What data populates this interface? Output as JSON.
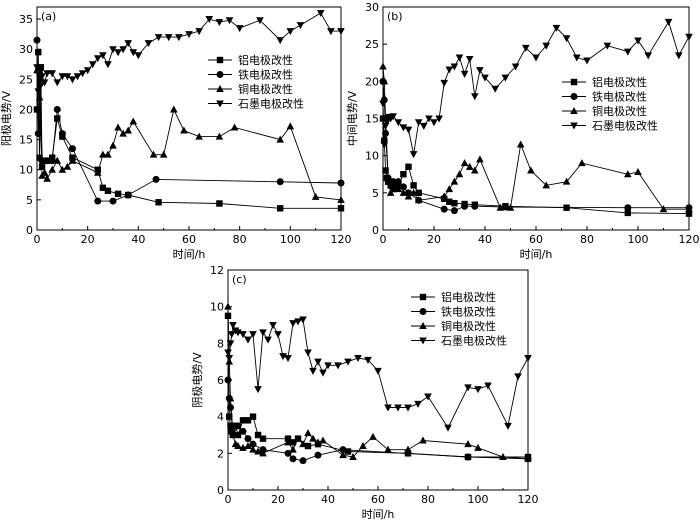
{
  "figure": {
    "legend_labels": [
      "铝电极改性",
      "铁电极改性",
      "铜电极改性",
      "石墨电极改性"
    ],
    "series_markers": [
      "square",
      "circle",
      "triangle-up",
      "triangle-down"
    ]
  },
  "chart_data": [
    {
      "type": "line",
      "panel_label": "(a)",
      "xlabel": "时间/h",
      "ylabel": "阳极电势/V",
      "xlim": [
        0,
        120
      ],
      "ylim": [
        0,
        37
      ],
      "xticks": [
        0,
        20,
        40,
        60,
        80,
        100,
        120
      ],
      "yticks": [
        0,
        5,
        10,
        15,
        20,
        25,
        30,
        35
      ],
      "legend_position": "center-right",
      "series": [
        {
          "name": "铝电极改性",
          "marker": "square",
          "x": [
            0,
            0.5,
            1,
            1.5,
            2,
            3,
            4,
            6,
            8,
            10,
            14,
            24,
            26,
            28,
            32,
            36,
            48,
            72,
            96,
            120
          ],
          "y": [
            20,
            29.5,
            12,
            27,
            10.5,
            11.5,
            11.5,
            12,
            18.5,
            15.5,
            12,
            10,
            7,
            6.5,
            6,
            5.8,
            4.6,
            4.4,
            3.6,
            3.6
          ]
        },
        {
          "name": "铁电极改性",
          "marker": "circle",
          "x": [
            0,
            0.5,
            1,
            2,
            4,
            6,
            8,
            10,
            14,
            24,
            30,
            36,
            47,
            96,
            120
          ],
          "y": [
            31.5,
            16,
            26,
            11.5,
            11.5,
            11.5,
            20,
            16,
            13.5,
            4.8,
            4.8,
            5.8,
            8.4,
            8,
            7.8
          ]
        },
        {
          "name": "铜电极改性",
          "marker": "triangle-up",
          "x": [
            0,
            0.5,
            1,
            2,
            3,
            4,
            6,
            8,
            10,
            12,
            14,
            24,
            26,
            28,
            30,
            32,
            34,
            36,
            38,
            46,
            50,
            54,
            58,
            64,
            72,
            78,
            96,
            100,
            110,
            120
          ],
          "y": [
            26.5,
            27,
            22,
            9,
            9.5,
            8.5,
            10,
            11.5,
            10,
            10.5,
            11.5,
            9.5,
            12.5,
            12.5,
            14,
            17,
            16,
            16.5,
            18,
            12.5,
            12.5,
            20,
            16.5,
            15.5,
            15.5,
            17,
            15,
            17.2,
            5.5,
            5
          ]
        },
        {
          "name": "石墨电极改性",
          "marker": "triangle-down",
          "x": [
            0,
            0.5,
            1,
            1.5,
            2,
            3,
            4,
            6,
            8,
            10,
            12,
            14,
            16,
            18,
            20,
            22,
            24,
            26,
            28,
            30,
            32,
            34,
            36,
            38,
            40,
            44,
            48,
            52,
            56,
            60,
            64,
            68,
            72,
            76,
            80,
            88,
            96,
            100,
            104,
            112,
            116,
            120
          ],
          "y": [
            27,
            23,
            26,
            24,
            25.5,
            24.5,
            26,
            26,
            24.5,
            25.5,
            25.5,
            25,
            25.5,
            26,
            26.5,
            27.5,
            28.5,
            29,
            27.5,
            30,
            29.5,
            30,
            31,
            29.5,
            29,
            31,
            32,
            32,
            32,
            32.5,
            33,
            35,
            34.5,
            34.8,
            33.5,
            34.8,
            31.5,
            33,
            34,
            36,
            33,
            33
          ]
        }
      ]
    },
    {
      "type": "line",
      "panel_label": "(b)",
      "xlabel": "时间/h",
      "ylabel": "中间电势/V",
      "xlim": [
        0,
        120
      ],
      "ylim": [
        0,
        30
      ],
      "xticks": [
        0,
        20,
        40,
        60,
        80,
        100,
        120
      ],
      "yticks": [
        0,
        5,
        10,
        15,
        20,
        25,
        30
      ],
      "legend_position": "center-right",
      "series": [
        {
          "name": "铝电极改性",
          "marker": "square",
          "x": [
            0,
            0.5,
            1,
            1.5,
            2,
            3,
            4,
            6,
            8,
            10,
            12,
            14,
            24,
            26,
            28,
            32,
            36,
            48,
            72,
            96,
            120
          ],
          "y": [
            15,
            12,
            8,
            7,
            6.5,
            6,
            5.5,
            6,
            7.5,
            8.5,
            6,
            5,
            4.2,
            3.8,
            3.6,
            3.5,
            3.4,
            3.2,
            3,
            2.3,
            2.2
          ]
        },
        {
          "name": "铁电极改性",
          "marker": "circle",
          "x": [
            0,
            0.5,
            1,
            2,
            4,
            6,
            8,
            10,
            14,
            24,
            28,
            32,
            36,
            48,
            96,
            120
          ],
          "y": [
            20,
            17.5,
            13,
            7,
            6.5,
            6.5,
            5.8,
            5,
            4,
            2.8,
            2.6,
            3.2,
            3.2,
            3.1,
            3,
            3
          ]
        },
        {
          "name": "铜电极改性",
          "marker": "triangle-up",
          "x": [
            0,
            0.5,
            1,
            2,
            3,
            4,
            6,
            8,
            10,
            12,
            14,
            24,
            26,
            28,
            30,
            32,
            34,
            36,
            38,
            46,
            50,
            54,
            58,
            64,
            72,
            78,
            96,
            100,
            110,
            120
          ],
          "y": [
            22,
            20,
            15,
            7,
            5,
            6,
            5.5,
            5,
            4.5,
            5,
            4,
            4.5,
            5.5,
            6.5,
            7.5,
            9,
            8.5,
            8,
            9.5,
            3,
            3,
            11.5,
            8,
            6,
            6.5,
            9,
            7.5,
            7.8,
            2.8,
            2.8
          ]
        },
        {
          "name": "石墨电极改性",
          "marker": "triangle-down",
          "x": [
            0,
            0.5,
            1,
            1.5,
            2,
            3,
            4,
            6,
            8,
            10,
            12,
            14,
            16,
            18,
            20,
            22,
            24,
            26,
            28,
            30,
            32,
            34,
            36,
            38,
            40,
            44,
            48,
            52,
            56,
            60,
            64,
            68,
            72,
            76,
            80,
            88,
            96,
            100,
            104,
            112,
            116,
            120
          ],
          "y": [
            17,
            11.5,
            14,
            14.5,
            15.2,
            15,
            15.3,
            14.5,
            13.8,
            13.5,
            10.2,
            14.5,
            14,
            15,
            14.5,
            15,
            19.8,
            21.6,
            22,
            23.2,
            21,
            23,
            18,
            21.5,
            20.5,
            19,
            20.5,
            22,
            24.5,
            23.2,
            24.8,
            27.2,
            25.8,
            23.2,
            22.8,
            24.8,
            24,
            25.5,
            23.5,
            28,
            23.5,
            26
          ]
        }
      ]
    },
    {
      "type": "line",
      "panel_label": "(c)",
      "xlabel": "时间/h",
      "ylabel": "阴极电势/V",
      "xlim": [
        0,
        120
      ],
      "ylim": [
        0,
        12
      ],
      "xticks": [
        0,
        20,
        40,
        60,
        80,
        100,
        120
      ],
      "yticks": [
        0,
        2,
        4,
        6,
        8,
        10,
        12
      ],
      "legend_position": "top-right",
      "series": [
        {
          "name": "铝电极改性",
          "marker": "square",
          "x": [
            0,
            0.5,
            1,
            1.5,
            2,
            3,
            4,
            6,
            8,
            10,
            12,
            14,
            24,
            26,
            28,
            32,
            36,
            48,
            72,
            96,
            120
          ],
          "y": [
            9.5,
            4,
            3.5,
            3.2,
            3.5,
            3.5,
            3,
            3.8,
            3.8,
            4,
            3,
            2.8,
            2.8,
            2.6,
            2.8,
            2.4,
            2.5,
            2.1,
            2,
            1.8,
            1.8
          ]
        },
        {
          "name": "铁电极改性",
          "marker": "circle",
          "x": [
            0,
            0.5,
            1,
            2,
            4,
            6,
            8,
            10,
            14,
            24,
            26,
            30,
            36,
            46,
            96,
            120
          ],
          "y": [
            6,
            5,
            4.5,
            3,
            3.5,
            3.2,
            2.8,
            2.5,
            2.2,
            2,
            1.7,
            1.6,
            1.9,
            2.2,
            1.8,
            1.7
          ]
        },
        {
          "name": "铜电极改性",
          "marker": "triangle-up",
          "x": [
            0,
            0.5,
            1,
            2,
            3,
            4,
            6,
            8,
            10,
            12,
            14,
            24,
            26,
            28,
            30,
            32,
            34,
            36,
            38,
            46,
            50,
            54,
            58,
            64,
            72,
            78,
            96,
            100,
            110,
            120
          ],
          "y": [
            10,
            7,
            5,
            3,
            2.5,
            2.4,
            2.3,
            2.4,
            2.2,
            2.1,
            2,
            2.6,
            2.2,
            2.8,
            2.5,
            3.1,
            2.8,
            2.6,
            2.7,
            1.9,
            1.8,
            2.4,
            2.9,
            2.2,
            2.2,
            2.7,
            2.5,
            2.3,
            1.8,
            1.7
          ]
        },
        {
          "name": "石墨电极改性",
          "marker": "triangle-down",
          "x": [
            0,
            0.5,
            1,
            1.5,
            2,
            3,
            4,
            6,
            8,
            10,
            12,
            14,
            16,
            18,
            20,
            22,
            24,
            26,
            28,
            30,
            32,
            34,
            36,
            38,
            40,
            44,
            48,
            52,
            56,
            60,
            64,
            68,
            72,
            76,
            80,
            88,
            96,
            100,
            104,
            112,
            116,
            120
          ],
          "y": [
            7.5,
            7.2,
            8,
            8.5,
            9,
            8.7,
            8.6,
            8.5,
            8.2,
            8.5,
            5.5,
            8.6,
            8.2,
            9,
            8.5,
            7.3,
            7.2,
            9.1,
            9.2,
            9.3,
            7.5,
            6.5,
            7,
            6.4,
            6.8,
            6.8,
            7,
            7.2,
            7.1,
            6.5,
            4.5,
            4.5,
            4.5,
            4.7,
            5.1,
            3.4,
            5.6,
            5.5,
            5.7,
            3.5,
            6.2,
            7.2
          ]
        }
      ]
    }
  ]
}
